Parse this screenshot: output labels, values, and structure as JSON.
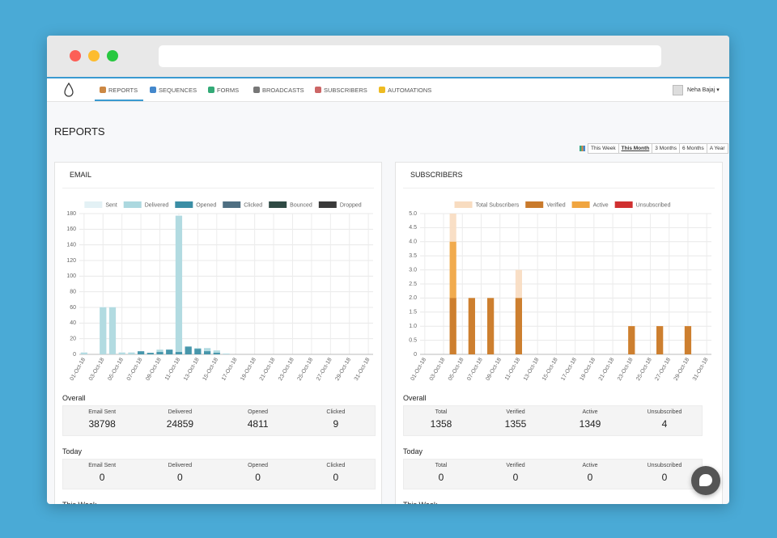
{
  "nav": {
    "items": [
      "REPORTS",
      "SEQUENCES",
      "FORMS",
      "BROADCASTS",
      "SUBSCRIBERS",
      "AUTOMATIONS"
    ],
    "active": 0,
    "user": "Neha Bajaj"
  },
  "page": {
    "title": "REPORTS",
    "ranges": [
      "This Week",
      "This Month",
      "3 Months",
      "6 Months",
      "A Year"
    ],
    "active_range": 1
  },
  "panels": [
    {
      "title": "EMAIL",
      "sections": [
        {
          "title": "Overall",
          "stats": [
            {
              "label": "Email Sent",
              "value": 38798
            },
            {
              "label": "Delivered",
              "value": 24859
            },
            {
              "label": "Opened",
              "value": 4811
            },
            {
              "label": "Clicked",
              "value": 9
            }
          ]
        },
        {
          "title": "Today",
          "stats": [
            {
              "label": "Email Sent",
              "value": 0
            },
            {
              "label": "Delivered",
              "value": 0
            },
            {
              "label": "Opened",
              "value": 0
            },
            {
              "label": "Clicked",
              "value": 0
            }
          ]
        },
        {
          "title": "This Week"
        }
      ]
    },
    {
      "title": "SUBSCRIBERS",
      "sections": [
        {
          "title": "Overall",
          "stats": [
            {
              "label": "Total",
              "value": 1358
            },
            {
              "label": "Verified",
              "value": 1355
            },
            {
              "label": "Active",
              "value": 1349
            },
            {
              "label": "Unsubscribed",
              "value": 4
            }
          ]
        },
        {
          "title": "Today",
          "stats": [
            {
              "label": "Total",
              "value": 0
            },
            {
              "label": "Verified",
              "value": 0
            },
            {
              "label": "Active",
              "value": 0
            },
            {
              "label": "Unsubscribed",
              "value": 0
            }
          ]
        },
        {
          "title": "This Week"
        }
      ]
    }
  ],
  "chart_data": [
    {
      "type": "bar",
      "categories": [
        "01-Oct-18",
        null,
        "03-Oct-18",
        null,
        "05-Oct-18",
        null,
        "07-Oct-18",
        null,
        "09-Oct-18",
        null,
        "11-Oct-18",
        null,
        "13-Oct-18",
        null,
        "15-Oct-18",
        null,
        "17-Oct-18",
        null,
        "19-Oct-18",
        null,
        "21-Oct-18",
        null,
        "23-Oct-18",
        null,
        "25-Oct-18",
        null,
        "27-Oct-18",
        null,
        "29-Oct-18",
        null,
        "31-Oct-18"
      ],
      "ylim": [
        0,
        180
      ],
      "yticks": [
        0,
        20,
        40,
        60,
        80,
        100,
        120,
        140,
        160,
        180
      ],
      "grid": true,
      "series": [
        {
          "name": "Sent",
          "color": "#e3f1f5",
          "values": [
            3,
            0,
            61,
            61,
            3,
            3,
            3,
            1,
            6,
            6,
            178,
            9,
            8,
            8,
            5,
            1,
            0,
            0,
            0,
            0,
            0,
            0,
            0,
            0,
            0,
            0,
            0,
            0,
            0,
            0,
            0
          ]
        },
        {
          "name": "Delivered",
          "color": "#acd8df",
          "values": [
            2,
            0,
            60,
            60,
            2,
            2,
            3,
            1,
            6,
            6,
            177,
            9,
            8,
            8,
            5,
            1,
            0,
            0,
            0,
            0,
            0,
            0,
            0,
            0,
            0,
            0,
            0,
            0,
            0,
            0,
            0
          ]
        },
        {
          "name": "Opened",
          "color": "#3b8ea5",
          "values": [
            0,
            0,
            0,
            0,
            0,
            0,
            4,
            2,
            3,
            6,
            3,
            10,
            7,
            4,
            2,
            0,
            0,
            0,
            0,
            0,
            0,
            0,
            0,
            0,
            0,
            0,
            0,
            0,
            0,
            0,
            0
          ]
        },
        {
          "name": "Clicked",
          "color": "#4f6f82",
          "values": [
            0,
            0,
            0,
            0,
            0,
            0,
            0,
            0,
            0,
            0,
            0,
            0,
            0,
            0,
            0,
            0,
            0,
            0,
            0,
            0,
            0,
            0,
            0,
            0,
            0,
            0,
            0,
            0,
            0,
            0,
            0
          ]
        },
        {
          "name": "Bounced",
          "color": "#2f4a44",
          "values": [
            0,
            0,
            0,
            0,
            0,
            0,
            0,
            0,
            0,
            0,
            0,
            0,
            0,
            0,
            0,
            0,
            0,
            0,
            0,
            0,
            0,
            0,
            0,
            0,
            0,
            0,
            0,
            0,
            0,
            0,
            0
          ]
        },
        {
          "name": "Dropped",
          "color": "#3a3a3a",
          "values": [
            0,
            0,
            0,
            0,
            0,
            0,
            0,
            0,
            0,
            0,
            0,
            0,
            0,
            0,
            0,
            0,
            0,
            0,
            0,
            0,
            0,
            0,
            0,
            0,
            0,
            0,
            0,
            0,
            0,
            0,
            0
          ]
        }
      ]
    },
    {
      "type": "bar",
      "categories": [
        "01-Oct-18",
        null,
        "03-Oct-18",
        null,
        "05-Oct-18",
        null,
        "07-Oct-18",
        null,
        "09-Oct-18",
        null,
        "11-Oct-18",
        null,
        "13-Oct-18",
        null,
        "15-Oct-18",
        null,
        "17-Oct-18",
        null,
        "19-Oct-18",
        null,
        "21-Oct-18",
        null,
        "23-Oct-18",
        null,
        "25-Oct-18",
        null,
        "27-Oct-18",
        null,
        "29-Oct-18",
        null,
        "31-Oct-18"
      ],
      "ylim": [
        0,
        5
      ],
      "yticks": [
        0,
        0.5,
        {
          "value": 1,
          "label": "1.0"
        },
        1.5,
        {
          "value": 2,
          "label": "2.0"
        },
        2.5,
        {
          "value": 3,
          "label": "3.0"
        },
        3.5,
        {
          "value": 4,
          "label": "4.0"
        },
        4.5,
        {
          "value": 5,
          "label": "5.0"
        }
      ],
      "grid": true,
      "series": [
        {
          "name": "Total Subscribers",
          "color": "#f8dcc0",
          "values": [
            0,
            0,
            0,
            5,
            0,
            2,
            0,
            2,
            0,
            0,
            3,
            0,
            0,
            0,
            0,
            0,
            0,
            0,
            0,
            0,
            0,
            0,
            1,
            0,
            0,
            1,
            0,
            0,
            1,
            0,
            0
          ]
        },
        {
          "name": "Verified",
          "color": "#c97a2c",
          "values": [
            0,
            0,
            0,
            2,
            0,
            2,
            0,
            2,
            0,
            0,
            2,
            0,
            0,
            0,
            0,
            0,
            0,
            0,
            0,
            0,
            0,
            0,
            1,
            0,
            0,
            1,
            0,
            0,
            1,
            0,
            0
          ]
        },
        {
          "name": "Active",
          "color": "#f0a540",
          "values": [
            0,
            0,
            0,
            4,
            0,
            2,
            0,
            2,
            0,
            0,
            2,
            0,
            0,
            0,
            0,
            0,
            0,
            0,
            0,
            0,
            0,
            0,
            1,
            0,
            0,
            1,
            0,
            0,
            1,
            0,
            0
          ]
        },
        {
          "name": "Unsubscribed",
          "color": "#d03030",
          "values": [
            0,
            0,
            0,
            0,
            0,
            0,
            0,
            0,
            0,
            0,
            0,
            0,
            0,
            0,
            0,
            0,
            0,
            0,
            0,
            0,
            0,
            0,
            0,
            0,
            0,
            0,
            0,
            0,
            0,
            0,
            0
          ]
        }
      ]
    }
  ]
}
